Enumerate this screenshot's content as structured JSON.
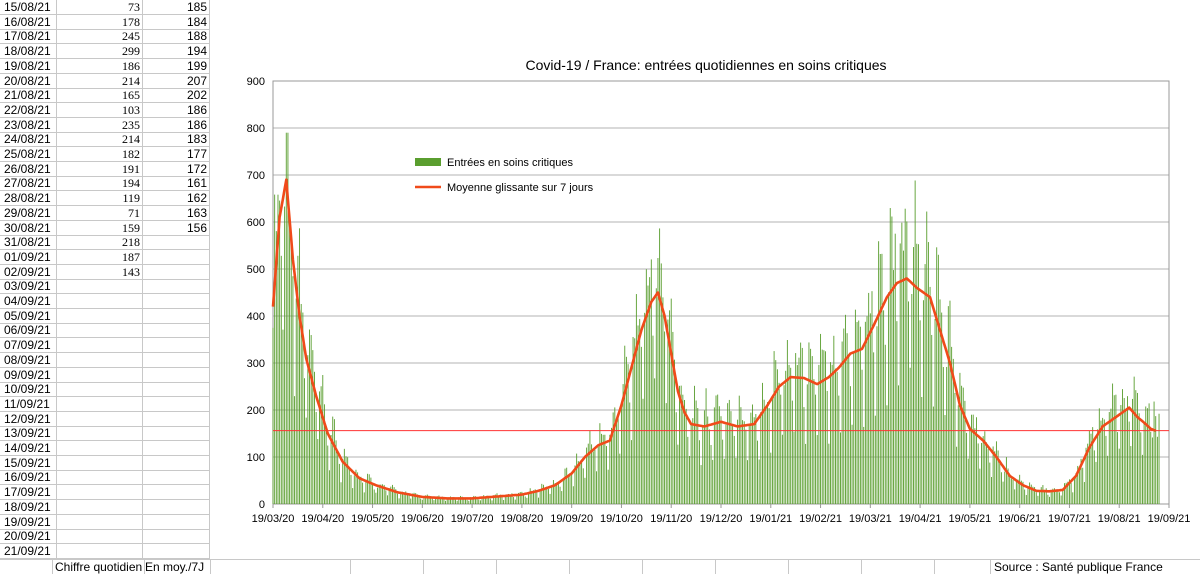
{
  "sheet": {
    "rows": [
      {
        "date": "15/08/21",
        "daily": "73",
        "avg": "185"
      },
      {
        "date": "16/08/21",
        "daily": "178",
        "avg": "184"
      },
      {
        "date": "17/08/21",
        "daily": "245",
        "avg": "188"
      },
      {
        "date": "18/08/21",
        "daily": "299",
        "avg": "194"
      },
      {
        "date": "19/08/21",
        "daily": "186",
        "avg": "199"
      },
      {
        "date": "20/08/21",
        "daily": "214",
        "avg": "207"
      },
      {
        "date": "21/08/21",
        "daily": "165",
        "avg": "202"
      },
      {
        "date": "22/08/21",
        "daily": "103",
        "avg": "186"
      },
      {
        "date": "23/08/21",
        "daily": "235",
        "avg": "186"
      },
      {
        "date": "24/08/21",
        "daily": "214",
        "avg": "183"
      },
      {
        "date": "25/08/21",
        "daily": "182",
        "avg": "177"
      },
      {
        "date": "26/08/21",
        "daily": "191",
        "avg": "172"
      },
      {
        "date": "27/08/21",
        "daily": "194",
        "avg": "161"
      },
      {
        "date": "28/08/21",
        "daily": "119",
        "avg": "162"
      },
      {
        "date": "29/08/21",
        "daily": "71",
        "avg": "163"
      },
      {
        "date": "30/08/21",
        "daily": "159",
        "avg": "156"
      },
      {
        "date": "31/08/21",
        "daily": "218",
        "avg": ""
      },
      {
        "date": "01/09/21",
        "daily": "187",
        "avg": ""
      },
      {
        "date": "02/09/21",
        "daily": "143",
        "avg": ""
      },
      {
        "date": "03/09/21",
        "daily": "",
        "avg": ""
      },
      {
        "date": "04/09/21",
        "daily": "",
        "avg": ""
      },
      {
        "date": "05/09/21",
        "daily": "",
        "avg": ""
      },
      {
        "date": "06/09/21",
        "daily": "",
        "avg": ""
      },
      {
        "date": "07/09/21",
        "daily": "",
        "avg": ""
      },
      {
        "date": "08/09/21",
        "daily": "",
        "avg": ""
      },
      {
        "date": "09/09/21",
        "daily": "",
        "avg": ""
      },
      {
        "date": "10/09/21",
        "daily": "",
        "avg": ""
      },
      {
        "date": "11/09/21",
        "daily": "",
        "avg": ""
      },
      {
        "date": "12/09/21",
        "daily": "",
        "avg": ""
      },
      {
        "date": "13/09/21",
        "daily": "",
        "avg": ""
      },
      {
        "date": "14/09/21",
        "daily": "",
        "avg": ""
      },
      {
        "date": "15/09/21",
        "daily": "",
        "avg": ""
      },
      {
        "date": "16/09/21",
        "daily": "",
        "avg": ""
      },
      {
        "date": "17/09/21",
        "daily": "",
        "avg": ""
      },
      {
        "date": "18/09/21",
        "daily": "",
        "avg": ""
      },
      {
        "date": "19/09/21",
        "daily": "",
        "avg": ""
      },
      {
        "date": "20/09/21",
        "daily": "",
        "avg": ""
      },
      {
        "date": "21/09/21",
        "daily": "",
        "avg": ""
      }
    ]
  },
  "footer": {
    "daily_header": "Chiffre quotidien",
    "avg_header": "En moy./7J",
    "source": "Source : Santé publique France"
  },
  "colors": {
    "bars": "#5a9e2f",
    "line": "#f04a1a",
    "ref_line": "#ff3333",
    "grid": "#b3b3b3"
  },
  "chart_data": {
    "type": "bar",
    "title": "Covid-19 / France: entrées quotidiennes en soins critiques",
    "legend": [
      "Entrées en soins critiques",
      "Moyenne glissante sur 7 jours"
    ],
    "legend_position": "top-left",
    "ylim": [
      0,
      900
    ],
    "yticks": [
      0,
      100,
      200,
      300,
      400,
      500,
      600,
      700,
      800,
      900
    ],
    "xtick_labels": [
      "19/03/20",
      "19/04/20",
      "19/05/20",
      "19/06/20",
      "19/07/20",
      "19/08/20",
      "19/09/20",
      "19/10/20",
      "19/11/20",
      "19/12/20",
      "19/01/21",
      "19/02/21",
      "19/03/21",
      "19/04/21",
      "19/05/21",
      "19/06/21",
      "19/07/21",
      "19/08/21",
      "19/09/21"
    ],
    "x_start": "19/03/20",
    "moving_average_anchors": [
      [
        0,
        420
      ],
      [
        4,
        610
      ],
      [
        8,
        690
      ],
      [
        12,
        520
      ],
      [
        16,
        400
      ],
      [
        20,
        310
      ],
      [
        26,
        230
      ],
      [
        33,
        150
      ],
      [
        42,
        90
      ],
      [
        52,
        55
      ],
      [
        62,
        40
      ],
      [
        75,
        25
      ],
      [
        90,
        15
      ],
      [
        105,
        12
      ],
      [
        120,
        12
      ],
      [
        135,
        16
      ],
      [
        150,
        20
      ],
      [
        160,
        28
      ],
      [
        170,
        40
      ],
      [
        180,
        65
      ],
      [
        188,
        100
      ],
      [
        196,
        125
      ],
      [
        203,
        135
      ],
      [
        210,
        210
      ],
      [
        216,
        290
      ],
      [
        222,
        370
      ],
      [
        228,
        430
      ],
      [
        232,
        450
      ],
      [
        236,
        400
      ],
      [
        240,
        320
      ],
      [
        244,
        240
      ],
      [
        248,
        195
      ],
      [
        252,
        170
      ],
      [
        260,
        165
      ],
      [
        270,
        175
      ],
      [
        280,
        165
      ],
      [
        290,
        170
      ],
      [
        298,
        210
      ],
      [
        305,
        250
      ],
      [
        312,
        270
      ],
      [
        320,
        268
      ],
      [
        328,
        255
      ],
      [
        335,
        270
      ],
      [
        341,
        290
      ],
      [
        348,
        320
      ],
      [
        355,
        330
      ],
      [
        362,
        380
      ],
      [
        370,
        440
      ],
      [
        376,
        470
      ],
      [
        382,
        480
      ],
      [
        388,
        460
      ],
      [
        396,
        440
      ],
      [
        402,
        370
      ],
      [
        408,
        300
      ],
      [
        414,
        210
      ],
      [
        420,
        160
      ],
      [
        428,
        135
      ],
      [
        436,
        100
      ],
      [
        444,
        60
      ],
      [
        452,
        40
      ],
      [
        460,
        28
      ],
      [
        468,
        27
      ],
      [
        476,
        30
      ],
      [
        484,
        60
      ],
      [
        492,
        120
      ],
      [
        500,
        165
      ],
      [
        506,
        180
      ],
      [
        512,
        195
      ],
      [
        516,
        205
      ],
      [
        521,
        185
      ],
      [
        526,
        170
      ],
      [
        529,
        160
      ],
      [
        532,
        156
      ]
    ],
    "reference_line": 156,
    "daily_recent_sep_2021": [
      218,
      187,
      143
    ]
  }
}
